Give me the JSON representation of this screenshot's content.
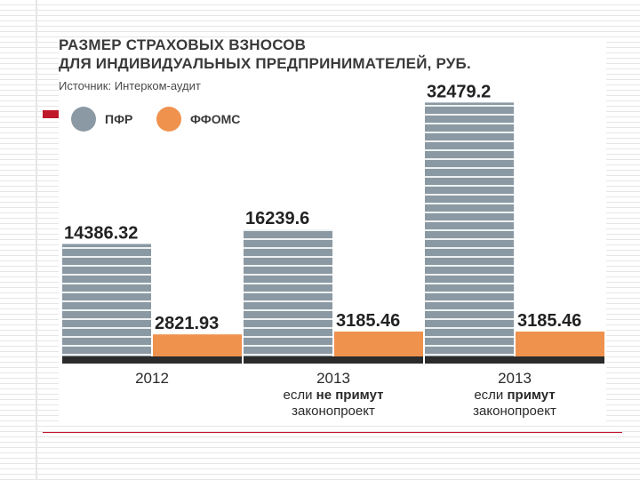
{
  "chart_data": {
    "type": "bar",
    "title_lines": [
      "РАЗМЕР СТРАХОВЫХ ВЗНОСОВ",
      "ДЛЯ ИНДИВИДУАЛЬНЫХ ПРЕДПРИНИМАТЕЛЕЙ, РУБ."
    ],
    "source": "Источник: Интерком-аудит",
    "legend_position": "top-left",
    "categories": [
      {
        "line1": "2012",
        "line2": [],
        "line3": ""
      },
      {
        "line1": "2013",
        "line2": [
          {
            "text": "если ",
            "bold": false
          },
          {
            "text": "не примут",
            "bold": true
          }
        ],
        "line3": "законопроект"
      },
      {
        "line1": "2013",
        "line2": [
          {
            "text": "если ",
            "bold": false
          },
          {
            "text": "примут",
            "bold": true
          }
        ],
        "line3": "законопроект"
      }
    ],
    "series": [
      {
        "name": "ПФР",
        "color": "#8a99a3",
        "values": [
          14386.32,
          16239.6,
          32479.2
        ],
        "labels": [
          "14386.32",
          "16239.6",
          "32479.2"
        ]
      },
      {
        "name": "ФФОМС",
        "color": "#ef924e",
        "values": [
          2821.93,
          3185.46,
          3185.46
        ],
        "labels": [
          "2821.93",
          "3185.46",
          "3185.46"
        ]
      }
    ],
    "ylim": [
      0,
      34000
    ],
    "grid": false,
    "colors": {
      "baseline": "#2b2b2b",
      "text": "#222222"
    }
  }
}
